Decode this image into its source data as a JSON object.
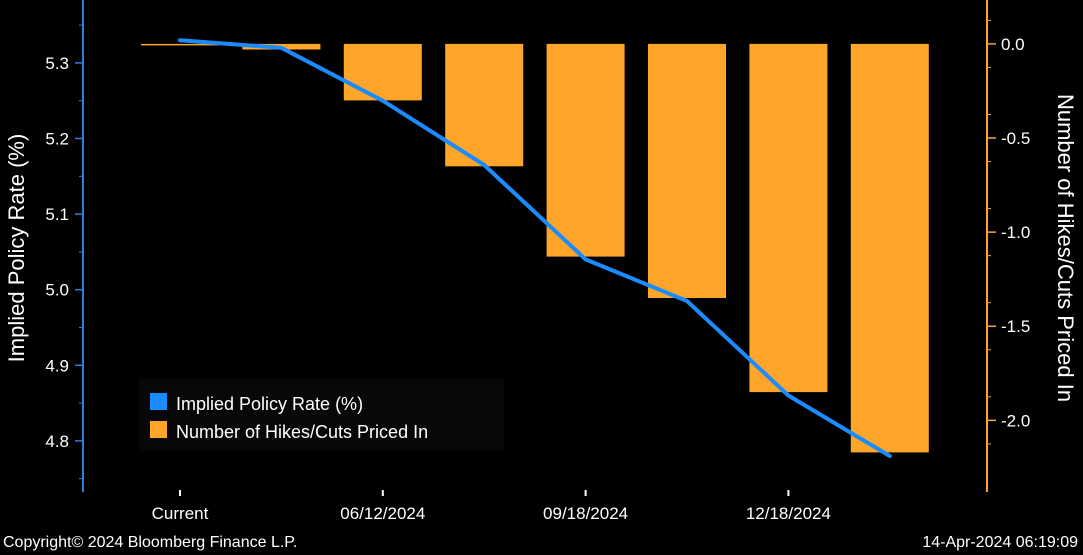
{
  "chart_data": {
    "type": "bar+line",
    "categories": [
      "Current",
      "",
      "06/12/2024",
      "",
      "09/18/2024",
      "",
      "12/18/2024",
      ""
    ],
    "x_tick_labels": [
      "Current",
      "06/12/2024",
      "09/18/2024",
      "12/18/2024"
    ],
    "series": [
      {
        "name": "Implied Policy Rate (%)",
        "type": "line",
        "axis": "left",
        "values": [
          5.33,
          5.32,
          5.25,
          5.165,
          5.04,
          4.985,
          4.86,
          4.78
        ]
      },
      {
        "name": "Number of Hikes/Cuts Priced In",
        "type": "bar",
        "axis": "right",
        "values": [
          0.0,
          -0.03,
          -0.3,
          -0.65,
          -1.13,
          -1.35,
          -1.85,
          -2.17
        ]
      }
    ],
    "ylabel_left": "Implied Policy Rate (%)",
    "ylabel_right": "Number of Hikes/Cuts Priced In",
    "ylim_left": [
      4.735,
      5.37
    ],
    "ylim_right": [
      -2.37,
      0.18
    ],
    "yticks_left": [
      "5.3",
      "5.2",
      "5.1",
      "5.0",
      "4.9",
      "4.8"
    ],
    "yticks_right": [
      "0.0",
      "-0.5",
      "-1.0",
      "-1.5",
      "-2.0"
    ],
    "legend_placement": "lower-left",
    "grid": false
  },
  "legend": {
    "items": [
      {
        "label": "Implied Policy Rate (%)",
        "color": "#1a8cff"
      },
      {
        "label": "Number of Hikes/Cuts Priced In",
        "color": "#ffa52a"
      }
    ]
  },
  "footer": {
    "copyright": "Copyright© 2024 Bloomberg Finance L.P.",
    "timestamp": "14-Apr-2024 06:19:09"
  },
  "colors": {
    "background": "#000000",
    "line": "#1a8cff",
    "bar": "#ffa52a",
    "left_axis": "#2f7fd6",
    "right_axis": "#ffa52a",
    "text": "#ffffff"
  }
}
